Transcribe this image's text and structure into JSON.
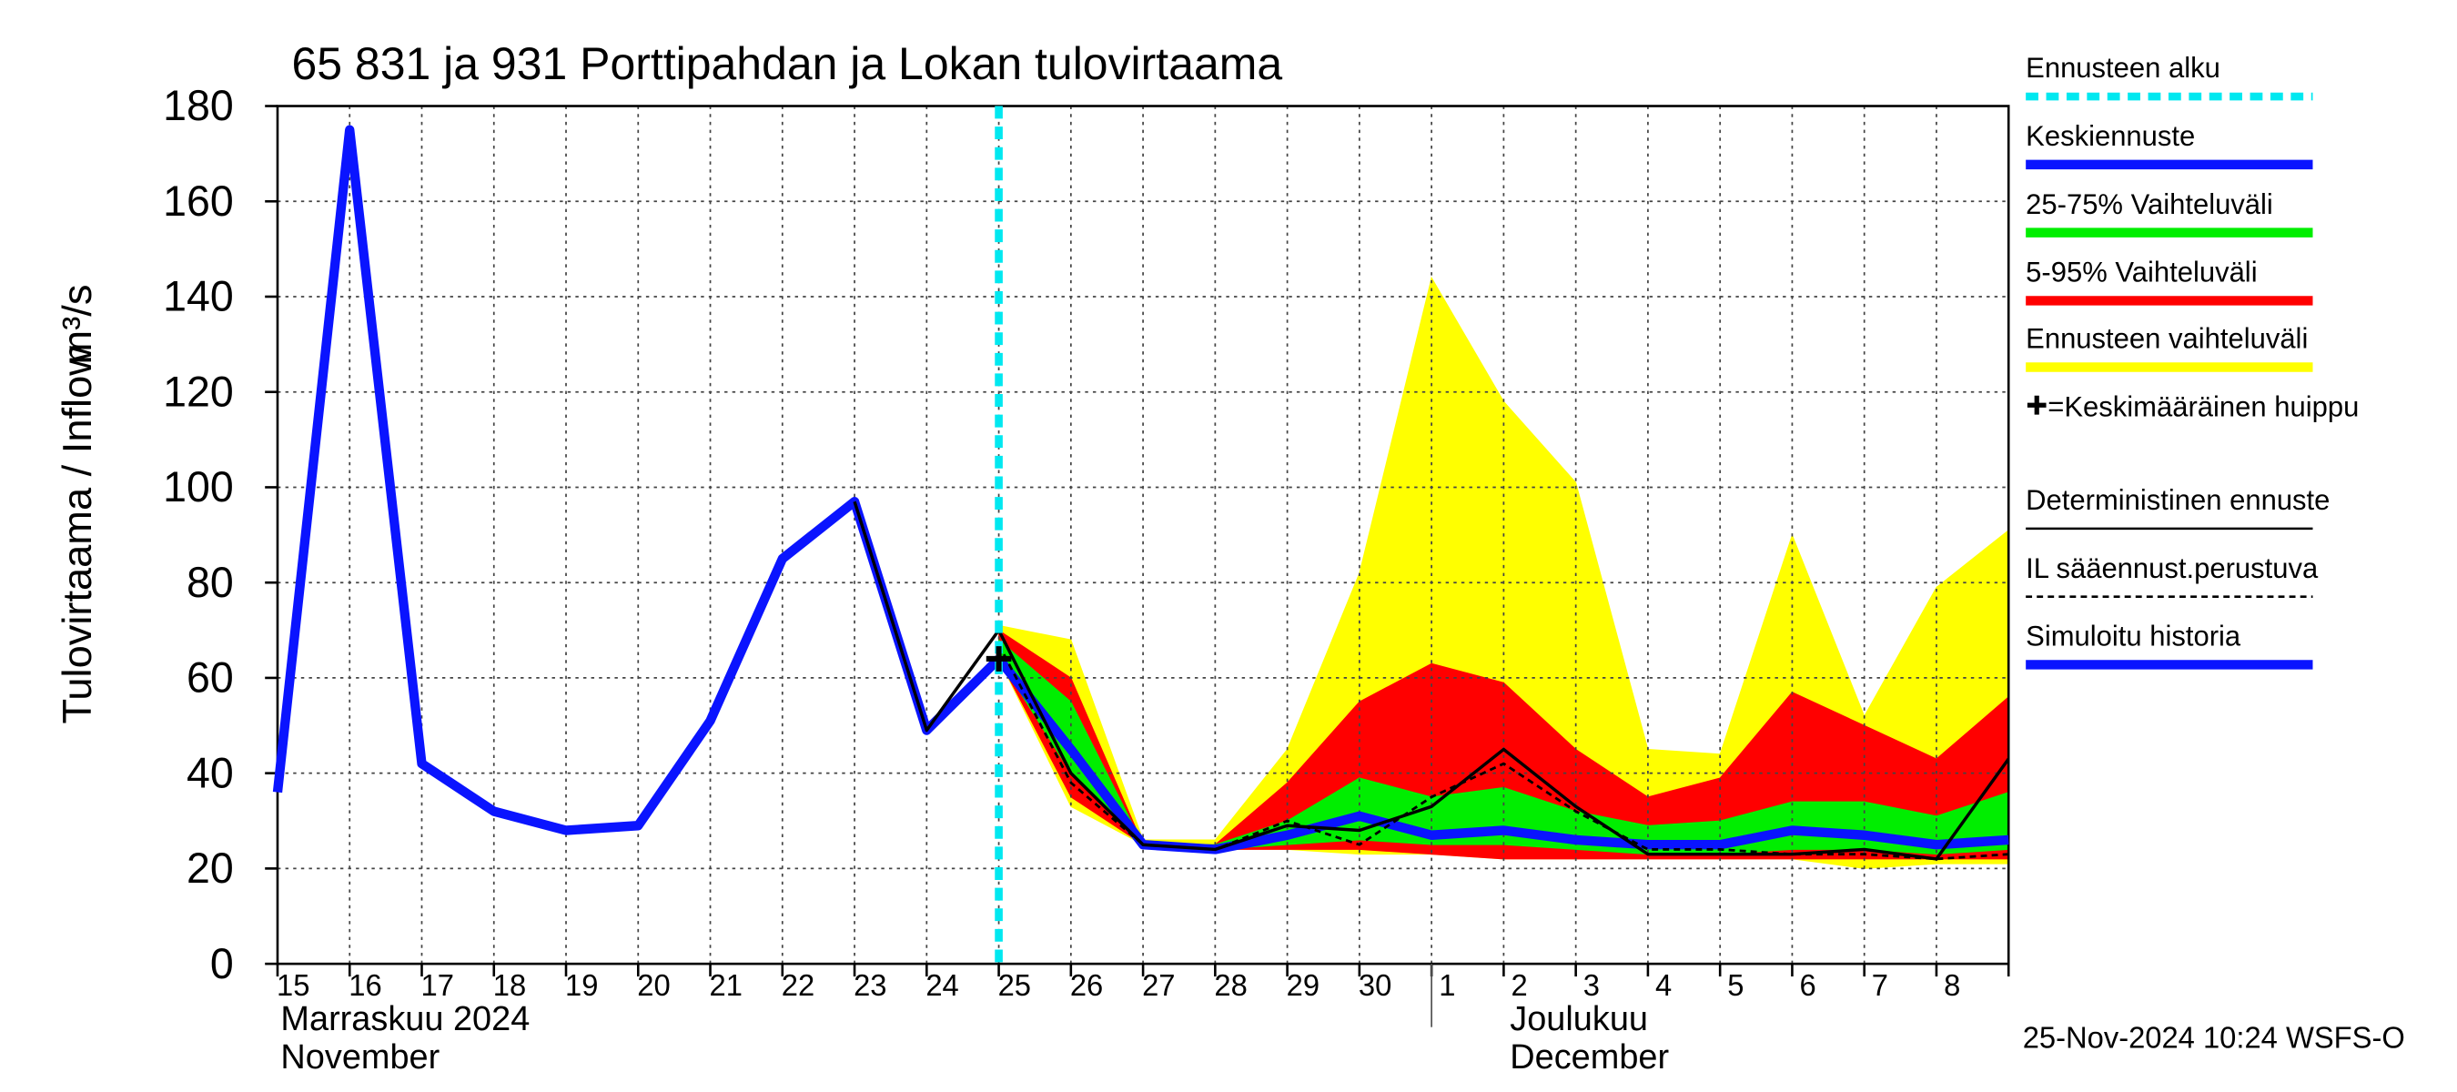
{
  "chart_data": {
    "type": "line",
    "title": "65 831 ja 931 Porttipahdan ja Lokan tulovirtaama",
    "ylabel": "Tulovirtaama / Inflow",
    "yunit": "m³/s",
    "timestamp": "25-Nov-2024 10:24 WSFS-O",
    "categories": [
      "15",
      "16",
      "17",
      "18",
      "19",
      "20",
      "21",
      "22",
      "23",
      "24",
      "25",
      "26",
      "27",
      "28",
      "29",
      "30",
      "1",
      "2",
      "3",
      "4",
      "5",
      "6",
      "7",
      "8",
      null
    ],
    "month_labels": [
      {
        "category": "15",
        "lines": [
          "Marraskuu 2024",
          "November"
        ]
      },
      {
        "category": "1",
        "lines": [
          "Joulukuu",
          "December"
        ]
      }
    ],
    "ylim": [
      0,
      180
    ],
    "yticks": [
      0,
      20,
      40,
      60,
      80,
      100,
      120,
      140,
      160,
      180
    ],
    "grid": true,
    "forecast_start": {
      "name": "Ennusteen alku",
      "category": "25",
      "color": "#00e8f0"
    },
    "bands": [
      {
        "name": "Ennusteen vaihteluväli",
        "color": "#ffff00",
        "low": [
          null,
          null,
          null,
          null,
          null,
          null,
          null,
          null,
          null,
          null,
          64,
          33,
          25,
          24,
          24,
          23,
          23,
          22,
          22,
          22,
          22,
          22,
          20,
          21,
          21
        ],
        "high": [
          null,
          null,
          null,
          null,
          null,
          null,
          null,
          null,
          null,
          null,
          71,
          68,
          26,
          26,
          45,
          82,
          144,
          118,
          101,
          45,
          44,
          90,
          52,
          79,
          91
        ]
      },
      {
        "name": "5-95% Vaihteluväli",
        "color": "#ff0000",
        "low": [
          null,
          null,
          null,
          null,
          null,
          null,
          null,
          null,
          null,
          null,
          64,
          35,
          25,
          24,
          24,
          24,
          23,
          22,
          22,
          22,
          22,
          22,
          22,
          22,
          22
        ],
        "high": [
          null,
          null,
          null,
          null,
          null,
          null,
          null,
          null,
          null,
          null,
          70,
          60,
          25,
          25,
          38,
          55,
          63,
          59,
          45,
          35,
          39,
          57,
          50,
          43,
          56
        ]
      },
      {
        "name": "25-75% Vaihteluväli",
        "color": "#00ee00",
        "low": [
          null,
          null,
          null,
          null,
          null,
          null,
          null,
          null,
          null,
          null,
          64,
          40,
          25,
          24,
          25,
          26,
          25,
          25,
          24,
          23,
          23,
          24,
          24,
          23,
          24
        ],
        "high": [
          null,
          null,
          null,
          null,
          null,
          null,
          null,
          null,
          null,
          null,
          68,
          55,
          25,
          25,
          30,
          39,
          35,
          37,
          32,
          29,
          30,
          34,
          34,
          31,
          36
        ]
      }
    ],
    "series": [
      {
        "name": "Simuloitu historia",
        "color": "#0a14ff",
        "values": [
          36,
          175,
          42,
          32,
          28,
          29,
          51,
          85,
          97,
          49,
          64,
          null,
          null,
          null,
          null,
          null,
          null,
          null,
          null,
          null,
          null,
          null,
          null,
          null,
          null
        ]
      },
      {
        "name": "Keskiennuste",
        "color": "#0a14ff",
        "values": [
          null,
          null,
          null,
          null,
          null,
          null,
          null,
          null,
          null,
          null,
          64,
          45,
          25,
          24,
          27,
          31,
          27,
          28,
          26,
          25,
          25,
          28,
          27,
          25,
          26
        ]
      },
      {
        "name": "Deterministinen ennuste",
        "color": "#000000",
        "values": [
          null,
          null,
          null,
          null,
          null,
          null,
          null,
          null,
          97,
          49,
          70,
          40,
          25,
          24,
          29,
          28,
          33,
          45,
          33,
          23,
          23,
          23,
          24,
          22,
          43
        ]
      },
      {
        "name": "IL sääennust.perustuva",
        "color": "#000000",
        "dashed": true,
        "values": [
          null,
          null,
          null,
          null,
          null,
          null,
          null,
          null,
          null,
          null,
          67,
          38,
          25,
          24,
          30,
          25,
          35,
          42,
          32,
          24,
          24,
          23,
          23,
          22,
          23
        ]
      }
    ],
    "peak": {
      "name": "=Keskimääräinen huippu",
      "category": "25",
      "value": 64,
      "color": "#000000"
    }
  }
}
